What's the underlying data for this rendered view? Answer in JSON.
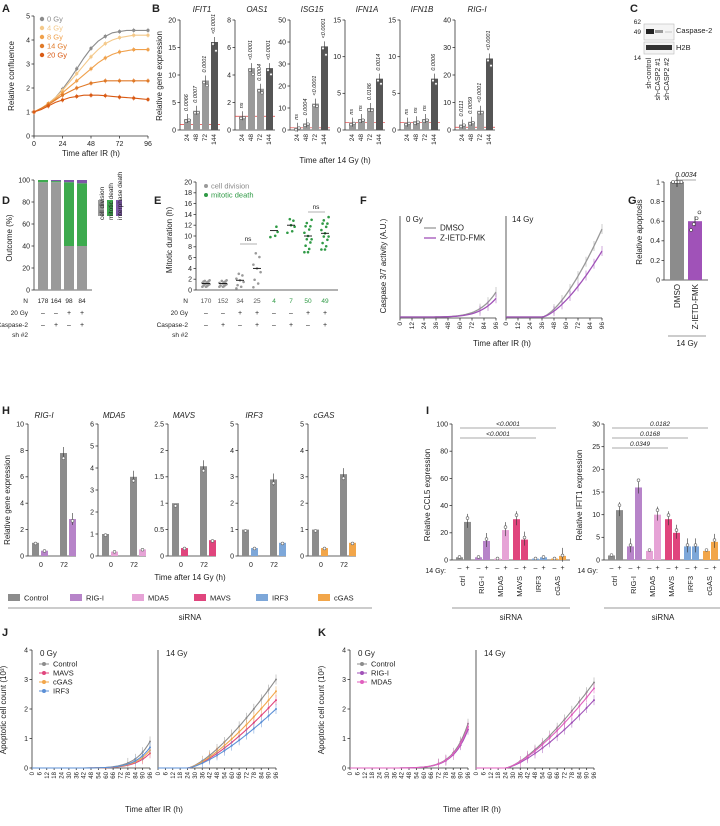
{
  "figure": {
    "panel_letters": [
      "A",
      "B",
      "C",
      "D",
      "E",
      "F",
      "G",
      "H",
      "I",
      "J",
      "K"
    ]
  },
  "chart_data": [
    {
      "panel": "A",
      "type": "line",
      "xlabel": "Time after IR (h)",
      "ylabel": "Relative confluence",
      "xticks": [
        0,
        24,
        48,
        72,
        96
      ],
      "yticks": [
        0,
        1,
        2,
        3,
        4,
        5
      ],
      "xlim": [
        0,
        96
      ],
      "ylim": [
        0,
        5
      ],
      "x": [
        0,
        6,
        12,
        18,
        24,
        30,
        36,
        42,
        48,
        54,
        60,
        66,
        72,
        78,
        84,
        90,
        96
      ],
      "series": [
        {
          "name": "0 Gy",
          "color": "#8c8c8c",
          "values": [
            1.0,
            1.15,
            1.35,
            1.6,
            1.95,
            2.35,
            2.8,
            3.25,
            3.65,
            3.95,
            4.15,
            4.3,
            4.35,
            4.4,
            4.4,
            4.4,
            4.4
          ]
        },
        {
          "name": "4 Gy",
          "color": "#f4c98a",
          "values": [
            1.0,
            1.15,
            1.35,
            1.6,
            1.9,
            2.25,
            2.6,
            2.95,
            3.3,
            3.6,
            3.85,
            4.0,
            4.1,
            4.15,
            4.2,
            4.2,
            4.2
          ]
        },
        {
          "name": "8 Gy",
          "color": "#f0a14c",
          "values": [
            1.0,
            1.15,
            1.35,
            1.55,
            1.8,
            2.05,
            2.3,
            2.55,
            2.8,
            3.05,
            3.25,
            3.4,
            3.5,
            3.55,
            3.6,
            3.6,
            3.6
          ]
        },
        {
          "name": "14 Gy",
          "color": "#e07a28",
          "values": [
            1.0,
            1.15,
            1.3,
            1.5,
            1.7,
            1.85,
            2.0,
            2.1,
            2.2,
            2.25,
            2.3,
            2.3,
            2.3,
            2.3,
            2.3,
            2.3,
            2.3
          ]
        },
        {
          "name": "20 Gy",
          "color": "#d95a14",
          "values": [
            1.0,
            1.1,
            1.25,
            1.4,
            1.5,
            1.6,
            1.65,
            1.7,
            1.7,
            1.7,
            1.68,
            1.65,
            1.62,
            1.6,
            1.58,
            1.55,
            1.52
          ]
        }
      ]
    },
    {
      "panel": "B",
      "type": "bar",
      "xlabel": "Time after 14 Gy (h)",
      "ylabel": "Relative gene expression",
      "categories": [
        "24",
        "48",
        "72",
        "144"
      ],
      "genes": [
        {
          "name": "IFIT1",
          "ymax": 20,
          "yticks": [
            0,
            5,
            10,
            15,
            20
          ],
          "values": [
            2.0,
            3.5,
            9.0,
            16.0
          ],
          "sig": [
            "0.0066",
            "0.0007",
            "0.0001",
            "<0.0001"
          ]
        },
        {
          "name": "OAS1",
          "ymax": 8,
          "yticks": [
            0,
            2,
            4,
            6,
            8
          ],
          "values": [
            1.0,
            4.5,
            3.0,
            4.5
          ],
          "sig": [
            "ns",
            "<0.0001",
            "0.0004",
            "<0.0001"
          ]
        },
        {
          "name": "ISG15",
          "ymax": 50,
          "yticks": [
            0,
            10,
            20,
            30,
            40,
            50
          ],
          "values": [
            1.0,
            3.0,
            12.0,
            38.0
          ],
          "sig": [
            "ns",
            "0.0004",
            "<0.0001",
            "<0.0001"
          ]
        },
        {
          "name": "IFN1A",
          "ymax": 15,
          "yticks": [
            0,
            5,
            10,
            15
          ],
          "values": [
            1.0,
            1.5,
            3.0,
            7.0
          ],
          "sig": [
            "ns",
            "ns",
            "0.0186",
            "0.0014"
          ]
        },
        {
          "name": "IFN1B",
          "ymax": 15,
          "yticks": [
            0,
            5,
            10,
            15
          ],
          "values": [
            1.0,
            1.2,
            1.5,
            7.0
          ],
          "sig": [
            "ns",
            "ns",
            "ns",
            "0.0006"
          ]
        },
        {
          "name": "RIG-I",
          "ymax": 40,
          "yticks": [
            0,
            10,
            20,
            30,
            40
          ],
          "values": [
            2.0,
            3.0,
            7.0,
            26.0
          ],
          "sig": [
            "0.0111",
            "0.0059",
            "<0.0001",
            "<0.0001"
          ]
        }
      ]
    },
    {
      "panel": "C",
      "type": "table",
      "title": "Western blot",
      "mw_markers": [
        "62",
        "49",
        "14"
      ],
      "bands": [
        "Caspase-2",
        "H2B"
      ],
      "lanes": [
        "sh-control",
        "sh-CASP2 #1",
        "sh-CASP2 #2"
      ]
    },
    {
      "panel": "D",
      "type": "bar",
      "ylabel": "Outcome (%)",
      "yticks": [
        0,
        20,
        40,
        60,
        80,
        100
      ],
      "ylim": [
        0,
        100
      ],
      "legend": [
        "interphase death",
        "mitotic death",
        "cell division"
      ],
      "colors": {
        "interphase": "#7e57a8",
        "mitotic": "#3daa4e",
        "division": "#9a9a9a"
      },
      "N": [
        "178",
        "164",
        "98",
        "84"
      ],
      "rows": {
        "20 Gy": [
          "–",
          "–",
          "+",
          "+"
        ],
        "Caspase-2 sh #2": [
          "–",
          "+",
          "–",
          "+"
        ]
      },
      "series": [
        {
          "name": "cell division",
          "values": [
            98,
            98,
            40,
            40
          ]
        },
        {
          "name": "mitotic death",
          "values": [
            2,
            1,
            58,
            57
          ]
        },
        {
          "name": "interphase death",
          "values": [
            0,
            1,
            2,
            3
          ]
        }
      ],
      "row_labels": [
        "N",
        "20 Gy",
        "Caspase-2",
        "sh #2"
      ]
    },
    {
      "panel": "E",
      "type": "scatter",
      "ylabel": "Mitotic duration (h)",
      "yticks": [
        0,
        2,
        4,
        6,
        8,
        10,
        12,
        14,
        16,
        18,
        20
      ],
      "ylim": [
        0,
        20
      ],
      "legend": [
        "cell division",
        "mitotic death"
      ],
      "N": [
        "170",
        "152",
        "34",
        "25",
        "4",
        "7",
        "50",
        "49"
      ],
      "means": [
        1.2,
        1.2,
        1.8,
        4.0,
        11.0,
        12.0,
        10.0,
        10.5
      ],
      "sig": [
        "ns",
        "ns"
      ],
      "rows": {
        "20 Gy": [
          "–",
          "–",
          "+",
          "+",
          "–",
          "–",
          "+",
          "+"
        ],
        "Caspase-2": [
          "–",
          "+",
          "–",
          "+",
          "–",
          "+",
          "–",
          "+"
        ]
      },
      "row_labels": [
        "N",
        "20 Gy",
        "Caspase-2",
        "sh #2"
      ]
    },
    {
      "panel": "F",
      "type": "line",
      "ylabel": "Caspase 3/7 activity (A.U.)",
      "xlabel": "Time after IR (h)",
      "subplots": [
        "0 Gy",
        "14 Gy"
      ],
      "xticks": [
        0,
        12,
        24,
        36,
        48,
        60,
        72,
        84,
        96
      ],
      "series": [
        {
          "name": "DMSO",
          "color": "#999999"
        },
        {
          "name": "Z-IETD-FMK",
          "color": "#a052b8"
        }
      ]
    },
    {
      "panel": "G",
      "type": "bar",
      "ylabel": "Relative apoptosis",
      "yticks": [
        0,
        0.2,
        0.4,
        0.6,
        0.8,
        1.0
      ],
      "ylim": [
        0,
        1.0
      ],
      "categories": [
        "DMSO",
        "Z-IETD-FMK"
      ],
      "values": [
        1.0,
        0.6
      ],
      "sig": "0.0034",
      "footer": "14 Gy"
    },
    {
      "panel": "H",
      "type": "bar",
      "ylabel": "Relative gene expression",
      "xlabel": "Time after 14 Gy (h)",
      "genes": [
        "RIG-I",
        "MDA5",
        "MAVS",
        "IRF3",
        "cGAS"
      ],
      "time_points": [
        "0",
        "72"
      ],
      "legend": [
        "Control",
        "RIG-I",
        "MDA5",
        "MAVS",
        "IRF3",
        "cGAS"
      ],
      "legend_colors": [
        "#8c8c8c",
        "#b784c9",
        "#e6a3d6",
        "#e0457d",
        "#7da7d9",
        "#f2a64a"
      ],
      "footer": "siRNA"
    },
    {
      "panel": "I",
      "type": "bar",
      "left": {
        "ylabel": "Relative CCL5 expression",
        "yticks": [
          0,
          20,
          40,
          60,
          80,
          100
        ],
        "sig": [
          "<0.0001",
          "<0.0001"
        ]
      },
      "right": {
        "ylabel": "Relative IFIT1 expression",
        "yticks": [
          0,
          5,
          10,
          15,
          20,
          25,
          30
        ],
        "sig": [
          "0.0182",
          "0.0168",
          "0.0349"
        ]
      },
      "categories": [
        "ctrl",
        "RIG-I",
        "MDA5",
        "MAVS",
        "IRF3",
        "cGAS"
      ],
      "row_label": "14 Gy:",
      "footer": "siRNA"
    },
    {
      "panel": "J",
      "type": "line",
      "ylabel": "Apoptotic cell count (10³)",
      "xlabel": "Time after IR (h)",
      "subplots": [
        "0 Gy",
        "14 Gy"
      ],
      "xticks": [
        0,
        6,
        12,
        18,
        24,
        30,
        36,
        42,
        48,
        54,
        60,
        66,
        72,
        78,
        84,
        90,
        96
      ],
      "yticks": [
        0,
        1,
        2,
        3,
        4
      ],
      "ylim": [
        0,
        4
      ],
      "series": [
        {
          "name": "Control",
          "color": "#8c8c8c"
        },
        {
          "name": "MAVS",
          "color": "#e0457d"
        },
        {
          "name": "cGAS",
          "color": "#f2a64a"
        },
        {
          "name": "IRF3",
          "color": "#5b8fd6"
        }
      ]
    },
    {
      "panel": "K",
      "type": "line",
      "ylabel": "Apoptotic cell count (10³)",
      "xlabel": "Time after IR (h)",
      "subplots": [
        "0 Gy",
        "14 Gy"
      ],
      "xticks": [
        0,
        6,
        12,
        18,
        24,
        30,
        36,
        42,
        48,
        54,
        60,
        66,
        72,
        78,
        84,
        90,
        96
      ],
      "yticks": [
        0,
        1,
        2,
        3,
        4
      ],
      "ylim": [
        0,
        4
      ],
      "series": [
        {
          "name": "Control",
          "color": "#8c8c8c"
        },
        {
          "name": "RIG-I",
          "color": "#a052b8"
        },
        {
          "name": "MDA5",
          "color": "#e05fbe"
        }
      ]
    }
  ]
}
